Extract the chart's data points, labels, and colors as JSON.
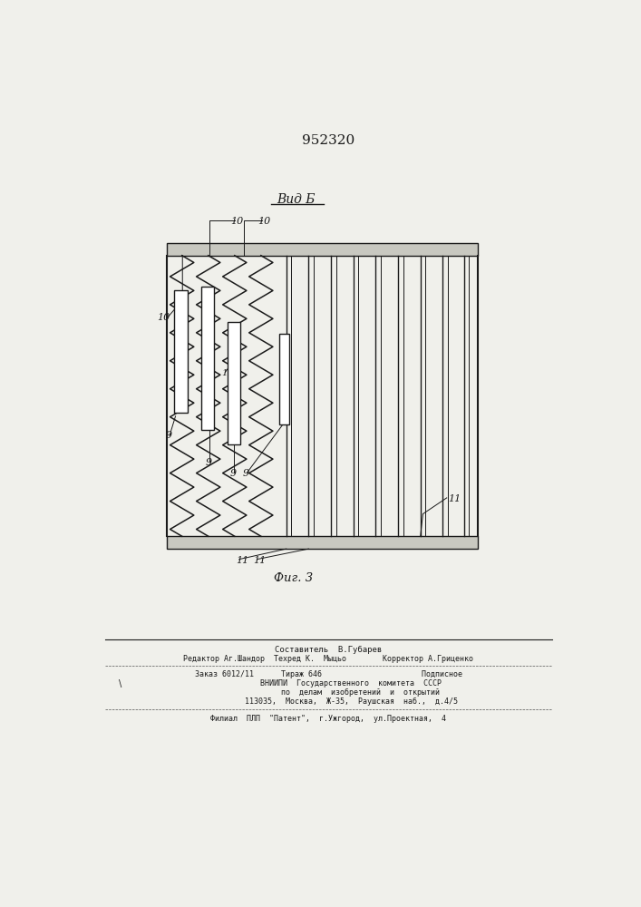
{
  "patent_number": "952320",
  "view_label": "Вид Б",
  "fig_label": "Фиг. 3",
  "bg_color": "#f0f0eb",
  "line_color": "#1a1a1a",
  "footer_lines": [
    "Составитель  В.Губарев",
    "Редактор Аг.Шандор  Техред К.  Мыцьо        Корректор А.Гриценко",
    "Заказ 6012/11      Тираж 646                      Подписное",
    "          ВНИИПИ  Государственного  комитета  СССР",
    "              по  делам  изобретений  и  открытий",
    "          113035,  Москва,  Ж-35,  Раушская  наб.,  д.4/5",
    "Филиал  ПЛП  \"Патент\",  г.Ужгород,  ул.Проектная,  4"
  ]
}
